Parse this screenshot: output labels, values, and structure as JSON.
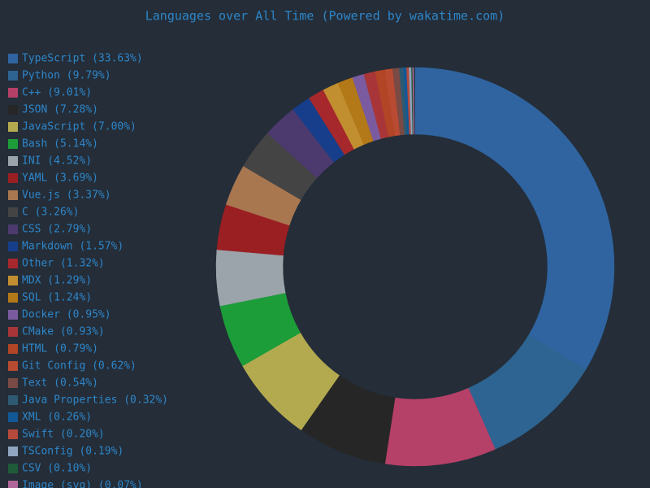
{
  "chart_data": {
    "type": "donut",
    "title": "Languages over All Time (Powered by wakatime.com)",
    "categories": [
      "TypeScript (33.63%)",
      "Python (9.79%)",
      "C++ (9.01%)",
      "JSON (7.28%)",
      "JavaScript (7.00%)",
      "Bash (5.14%)",
      "INI (4.52%)",
      "YAML (3.69%)",
      "Vue.js (3.37%)",
      "C (3.26%)",
      "CSS (2.79%)",
      "Markdown (1.57%)",
      "Other (1.32%)",
      "MDX (1.29%)",
      "SQL (1.24%)",
      "Docker (0.95%)",
      "CMake (0.93%)",
      "HTML (0.79%)",
      "Git Config (0.62%)",
      "Text (0.54%)",
      "Java Properties (0.32%)",
      "XML (0.26%)",
      "Swift (0.20%)",
      "TSConfig (0.19%)",
      "CSV (0.10%)",
      "Image (svg) (0.07%)"
    ],
    "values": [
      33.63,
      9.79,
      9.01,
      7.28,
      7.0,
      5.14,
      4.52,
      3.69,
      3.37,
      3.26,
      2.79,
      1.57,
      1.32,
      1.29,
      1.24,
      0.95,
      0.93,
      0.79,
      0.62,
      0.54,
      0.32,
      0.26,
      0.2,
      0.19,
      0.1,
      0.07
    ],
    "colors": [
      "#2f64a0",
      "#2e6491",
      "#b54068",
      "#262626",
      "#b3aa50",
      "#1d9c3a",
      "#9aa4aa",
      "#9a1f23",
      "#a87750",
      "#444444",
      "#4c3a6e",
      "#173e8a",
      "#a6282c",
      "#c18f30",
      "#b37817",
      "#7a5b9f",
      "#a83638",
      "#b14526",
      "#b94b32",
      "#7a4a44",
      "#2d5a72",
      "#135896",
      "#b54a3c",
      "#8fa5c0",
      "#1f5b38",
      "#b0689b"
    ]
  }
}
